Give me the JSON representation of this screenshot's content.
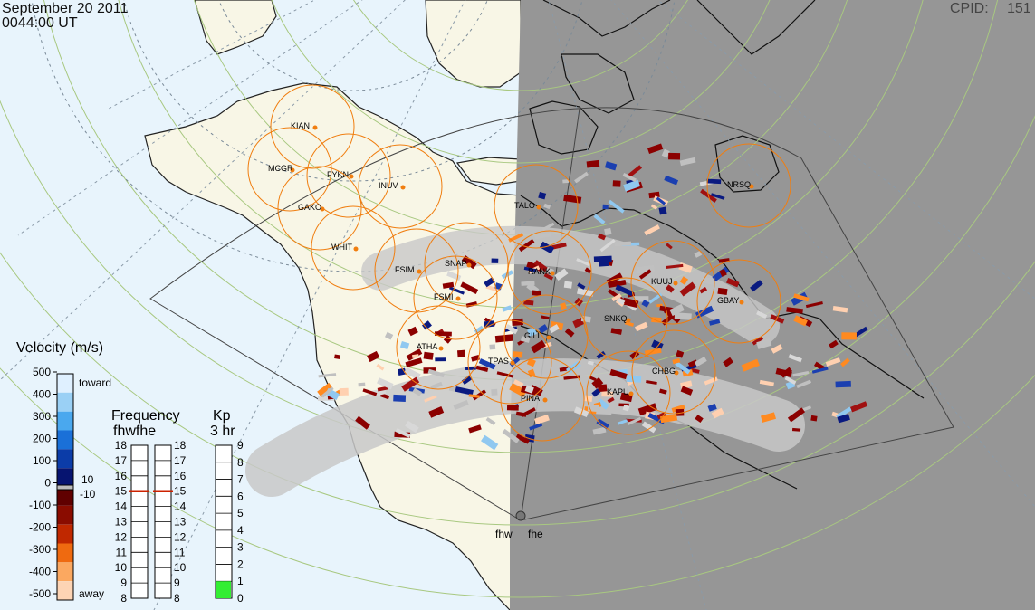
{
  "header": {
    "date": "September 20 2011",
    "time": "0044:00 UT",
    "cpid_label": "CPID:",
    "cpid_value": "151"
  },
  "colors": {
    "ocean": "#e8f4fc",
    "land": "#f8f6e6",
    "night": "#969696",
    "station_ring": "#f07e10",
    "fov_outline": "#444444",
    "lat_circle": "#a8c880",
    "kp_bar": "#33ee33",
    "freq_marker": "#cc2200"
  },
  "stations": [
    {
      "code": "KIAN"
    },
    {
      "code": "MCGR"
    },
    {
      "code": "FYKN"
    },
    {
      "code": "INUV"
    },
    {
      "code": "GAKO"
    },
    {
      "code": "WHIT"
    },
    {
      "code": "FSIM"
    },
    {
      "code": "SNAP"
    },
    {
      "code": "FSMI"
    },
    {
      "code": "TALO"
    },
    {
      "code": "RANK"
    },
    {
      "code": "KUUJ"
    },
    {
      "code": "GBAY"
    },
    {
      "code": "NRSQ"
    },
    {
      "code": "SNKQ"
    },
    {
      "code": "GILL"
    },
    {
      "code": "ATHA"
    },
    {
      "code": "TPAS"
    },
    {
      "code": "PINA"
    },
    {
      "code": "KAPU"
    },
    {
      "code": "CHBG"
    }
  ],
  "radars": {
    "west": "fhw",
    "east": "fhe"
  },
  "velocity_scale": {
    "title": "Velocity (m/s)",
    "ticks": [
      "500",
      "400",
      "300",
      "200",
      "100",
      "0",
      "-100",
      "-200",
      "-300",
      "-400",
      "-500"
    ],
    "toward_label": "toward",
    "away_label": "away",
    "threshold_pos": "10",
    "threshold_neg": "-10"
  },
  "frequency_panel": {
    "title": "Frequency",
    "radar_labels": "fhwfhe",
    "ticks": [
      "18",
      "17",
      "16",
      "15",
      "14",
      "13",
      "12",
      "11",
      "10",
      "9",
      "8"
    ],
    "fhw_value": 15,
    "fhe_value": 15
  },
  "kp_panel": {
    "title": "Kp",
    "subtitle": "3 hr",
    "ticks": [
      "9",
      "8",
      "7",
      "6",
      "5",
      "4",
      "3",
      "2",
      "1",
      "0"
    ],
    "value": 1
  }
}
